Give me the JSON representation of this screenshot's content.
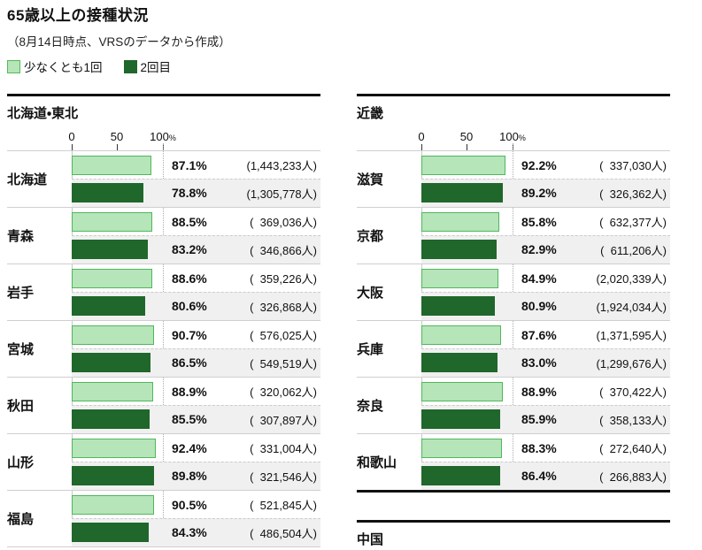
{
  "page": {
    "title": "65歳以上の接種状況",
    "subtitle": "（8月14日時点、VRSのデータから作成）"
  },
  "legend": {
    "items": [
      {
        "label": "少なくとも1回",
        "fill": "#b5e5b8",
        "border": "#57b957"
      },
      {
        "label": "2回目",
        "fill": "#1f672b",
        "border": "#1f672b"
      }
    ]
  },
  "colors": {
    "dose1_fill": "#b5e5b8",
    "dose1_border": "#4fb85c",
    "dose2_fill": "#1f672b",
    "alt_row_bg": "#f0f0f0",
    "rule": "#111111"
  },
  "chart_data": {
    "type": "bar",
    "title": "65歳以上の接種状況",
    "subtitle": "（8月14日時点、VRSのデータから作成）",
    "unit": "%",
    "xlim": [
      0,
      100
    ],
    "x_ticks": [
      "0",
      "50",
      "100"
    ],
    "series_names": [
      "少なくとも1回",
      "2回目"
    ],
    "sections": [
      {
        "title": "北海道・東北",
        "rows": [
          {
            "label": "北海道",
            "dose1": {
              "pct": 87.1,
              "pct_label": "87.1%",
              "count_label": "(1,443,233人)"
            },
            "dose2": {
              "pct": 78.8,
              "pct_label": "78.8%",
              "count_label": "(1,305,778人)"
            }
          },
          {
            "label": "青森",
            "dose1": {
              "pct": 88.5,
              "pct_label": "88.5%",
              "count_label": "(  369,036人)"
            },
            "dose2": {
              "pct": 83.2,
              "pct_label": "83.2%",
              "count_label": "(  346,866人)"
            }
          },
          {
            "label": "岩手",
            "dose1": {
              "pct": 88.6,
              "pct_label": "88.6%",
              "count_label": "(  359,226人)"
            },
            "dose2": {
              "pct": 80.6,
              "pct_label": "80.6%",
              "count_label": "(  326,868人)"
            }
          },
          {
            "label": "宮城",
            "dose1": {
              "pct": 90.7,
              "pct_label": "90.7%",
              "count_label": "(  576,025人)"
            },
            "dose2": {
              "pct": 86.5,
              "pct_label": "86.5%",
              "count_label": "(  549,519人)"
            }
          },
          {
            "label": "秋田",
            "dose1": {
              "pct": 88.9,
              "pct_label": "88.9%",
              "count_label": "(  320,062人)"
            },
            "dose2": {
              "pct": 85.5,
              "pct_label": "85.5%",
              "count_label": "(  307,897人)"
            }
          },
          {
            "label": "山形",
            "dose1": {
              "pct": 92.4,
              "pct_label": "92.4%",
              "count_label": "(  331,004人)"
            },
            "dose2": {
              "pct": 89.8,
              "pct_label": "89.8%",
              "count_label": "(  321,546人)"
            }
          },
          {
            "label": "福島",
            "dose1": {
              "pct": 90.5,
              "pct_label": "90.5%",
              "count_label": "(  521,845人)"
            },
            "dose2": {
              "pct": 84.3,
              "pct_label": "84.3%",
              "count_label": "(  486,504人)"
            }
          }
        ]
      },
      {
        "title": "近畿",
        "rows": [
          {
            "label": "滋賀",
            "dose1": {
              "pct": 92.2,
              "pct_label": "92.2%",
              "count_label": "(  337,030人)"
            },
            "dose2": {
              "pct": 89.2,
              "pct_label": "89.2%",
              "count_label": "(  326,362人)"
            }
          },
          {
            "label": "京都",
            "dose1": {
              "pct": 85.8,
              "pct_label": "85.8%",
              "count_label": "(  632,377人)"
            },
            "dose2": {
              "pct": 82.9,
              "pct_label": "82.9%",
              "count_label": "(  611,206人)"
            }
          },
          {
            "label": "大阪",
            "dose1": {
              "pct": 84.9,
              "pct_label": "84.9%",
              "count_label": "(2,020,339人)"
            },
            "dose2": {
              "pct": 80.9,
              "pct_label": "80.9%",
              "count_label": "(1,924,034人)"
            }
          },
          {
            "label": "兵庫",
            "dose1": {
              "pct": 87.6,
              "pct_label": "87.6%",
              "count_label": "(1,371,595人)"
            },
            "dose2": {
              "pct": 83.0,
              "pct_label": "83.0%",
              "count_label": "(1,299,676人)"
            }
          },
          {
            "label": "奈良",
            "dose1": {
              "pct": 88.9,
              "pct_label": "88.9%",
              "count_label": "(  370,422人)"
            },
            "dose2": {
              "pct": 85.9,
              "pct_label": "85.9%",
              "count_label": "(  358,133人)"
            }
          },
          {
            "label": "和歌山",
            "dose1": {
              "pct": 88.3,
              "pct_label": "88.3%",
              "count_label": "(  272,640人)"
            },
            "dose2": {
              "pct": 86.4,
              "pct_label": "86.4%",
              "count_label": "(  266,883人)"
            }
          }
        ]
      },
      {
        "title": "中国",
        "rows": []
      }
    ]
  }
}
